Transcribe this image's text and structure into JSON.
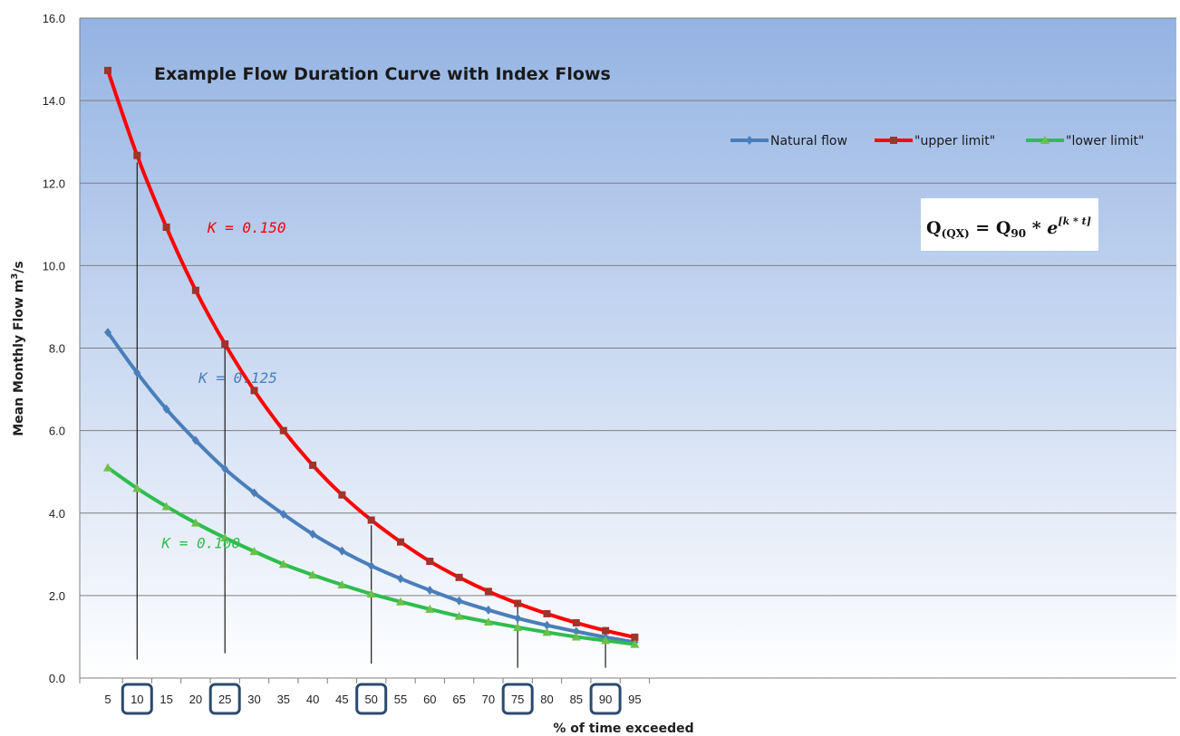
{
  "chart_data": {
    "type": "line",
    "title": "Example Flow Duration Curve with Index Flows",
    "xlabel": "% of time exceeded",
    "ylabel_main": "Mean Monthly Flow m",
    "ylabel_sup": "3",
    "ylabel_tail": "/s",
    "x": [
      5,
      10,
      15,
      20,
      25,
      30,
      35,
      40,
      45,
      50,
      55,
      60,
      65,
      70,
      75,
      80,
      85,
      90,
      95
    ],
    "x_tick_labels": [
      "5",
      "10",
      "15",
      "20",
      "25",
      "30",
      "35",
      "40",
      "45",
      "50",
      "55",
      "60",
      "65",
      "70",
      "75",
      "80",
      "85",
      "90",
      "95"
    ],
    "highlighted_x": [
      10,
      25,
      50,
      75,
      90
    ],
    "ylim": [
      0,
      16
    ],
    "y_tick_labels": [
      "0.0",
      "2.0",
      "4.0",
      "6.0",
      "8.0",
      "10.0",
      "12.0",
      "14.0",
      "16.0"
    ],
    "grid": true,
    "legend_position": "top-right",
    "series": [
      {
        "name": "Natural flow",
        "color": "#4a7ebb",
        "marker": "diamond",
        "values": [
          8.38,
          7.4,
          6.52,
          5.76,
          5.07,
          4.49,
          3.97,
          3.49,
          3.08,
          2.72,
          2.41,
          2.13,
          1.87,
          1.65,
          1.45,
          1.28,
          1.13,
          0.99,
          0.87
        ]
      },
      {
        "name": "\"upper limit\"",
        "color": "#ff0000",
        "marker": "square",
        "marker_color": "#a0332a",
        "values": [
          14.73,
          12.67,
          10.93,
          9.4,
          8.1,
          6.97,
          6.0,
          5.16,
          4.44,
          3.83,
          3.3,
          2.83,
          2.44,
          2.1,
          1.81,
          1.56,
          1.34,
          1.15,
          0.99
        ]
      },
      {
        "name": "\"lower limit\"",
        "color": "#2ebd4e",
        "marker": "triangle",
        "marker_color": "#6cc04a",
        "values": [
          5.1,
          4.6,
          4.16,
          3.76,
          3.4,
          3.07,
          2.76,
          2.5,
          2.26,
          2.04,
          1.85,
          1.67,
          1.5,
          1.36,
          1.23,
          1.11,
          1.0,
          0.91,
          0.82
        ]
      }
    ],
    "index_lines": [
      {
        "x": 10,
        "y_top": 12.5,
        "y_bottom": 0.45
      },
      {
        "x": 25,
        "y_top": 8.1,
        "y_bottom": 0.6
      },
      {
        "x": 50,
        "y_top": 3.7,
        "y_bottom": 0.35
      },
      {
        "x": 75,
        "y_top": 1.8,
        "y_bottom": 0.25
      },
      {
        "x": 90,
        "y_top": 1.1,
        "y_bottom": 0.25
      }
    ],
    "annotations": [
      {
        "text": "K = 0.150",
        "color": "#ff0000",
        "x": 22,
        "y": 10.8
      },
      {
        "text": "K = 0.125",
        "color": "#4a7ebb",
        "x": 20.5,
        "y": 7.15
      },
      {
        "text": "K = 0.100",
        "color": "#2ebd4e",
        "x": 14.2,
        "y": 3.15
      }
    ],
    "formula": {
      "q": "Q",
      "q_sub": "(QX)",
      "eq": " = ",
      "q90": "Q",
      "q90_sub": "90",
      "mult": " * e",
      "exponent": "[k * t]"
    }
  },
  "colors": {
    "plot_top": "#94b3e3",
    "plot_bottom": "#ffffff",
    "gridline": "#7f7f7f",
    "index_line": "#1a1a1a",
    "highlight_box": "#2c4a6e"
  }
}
